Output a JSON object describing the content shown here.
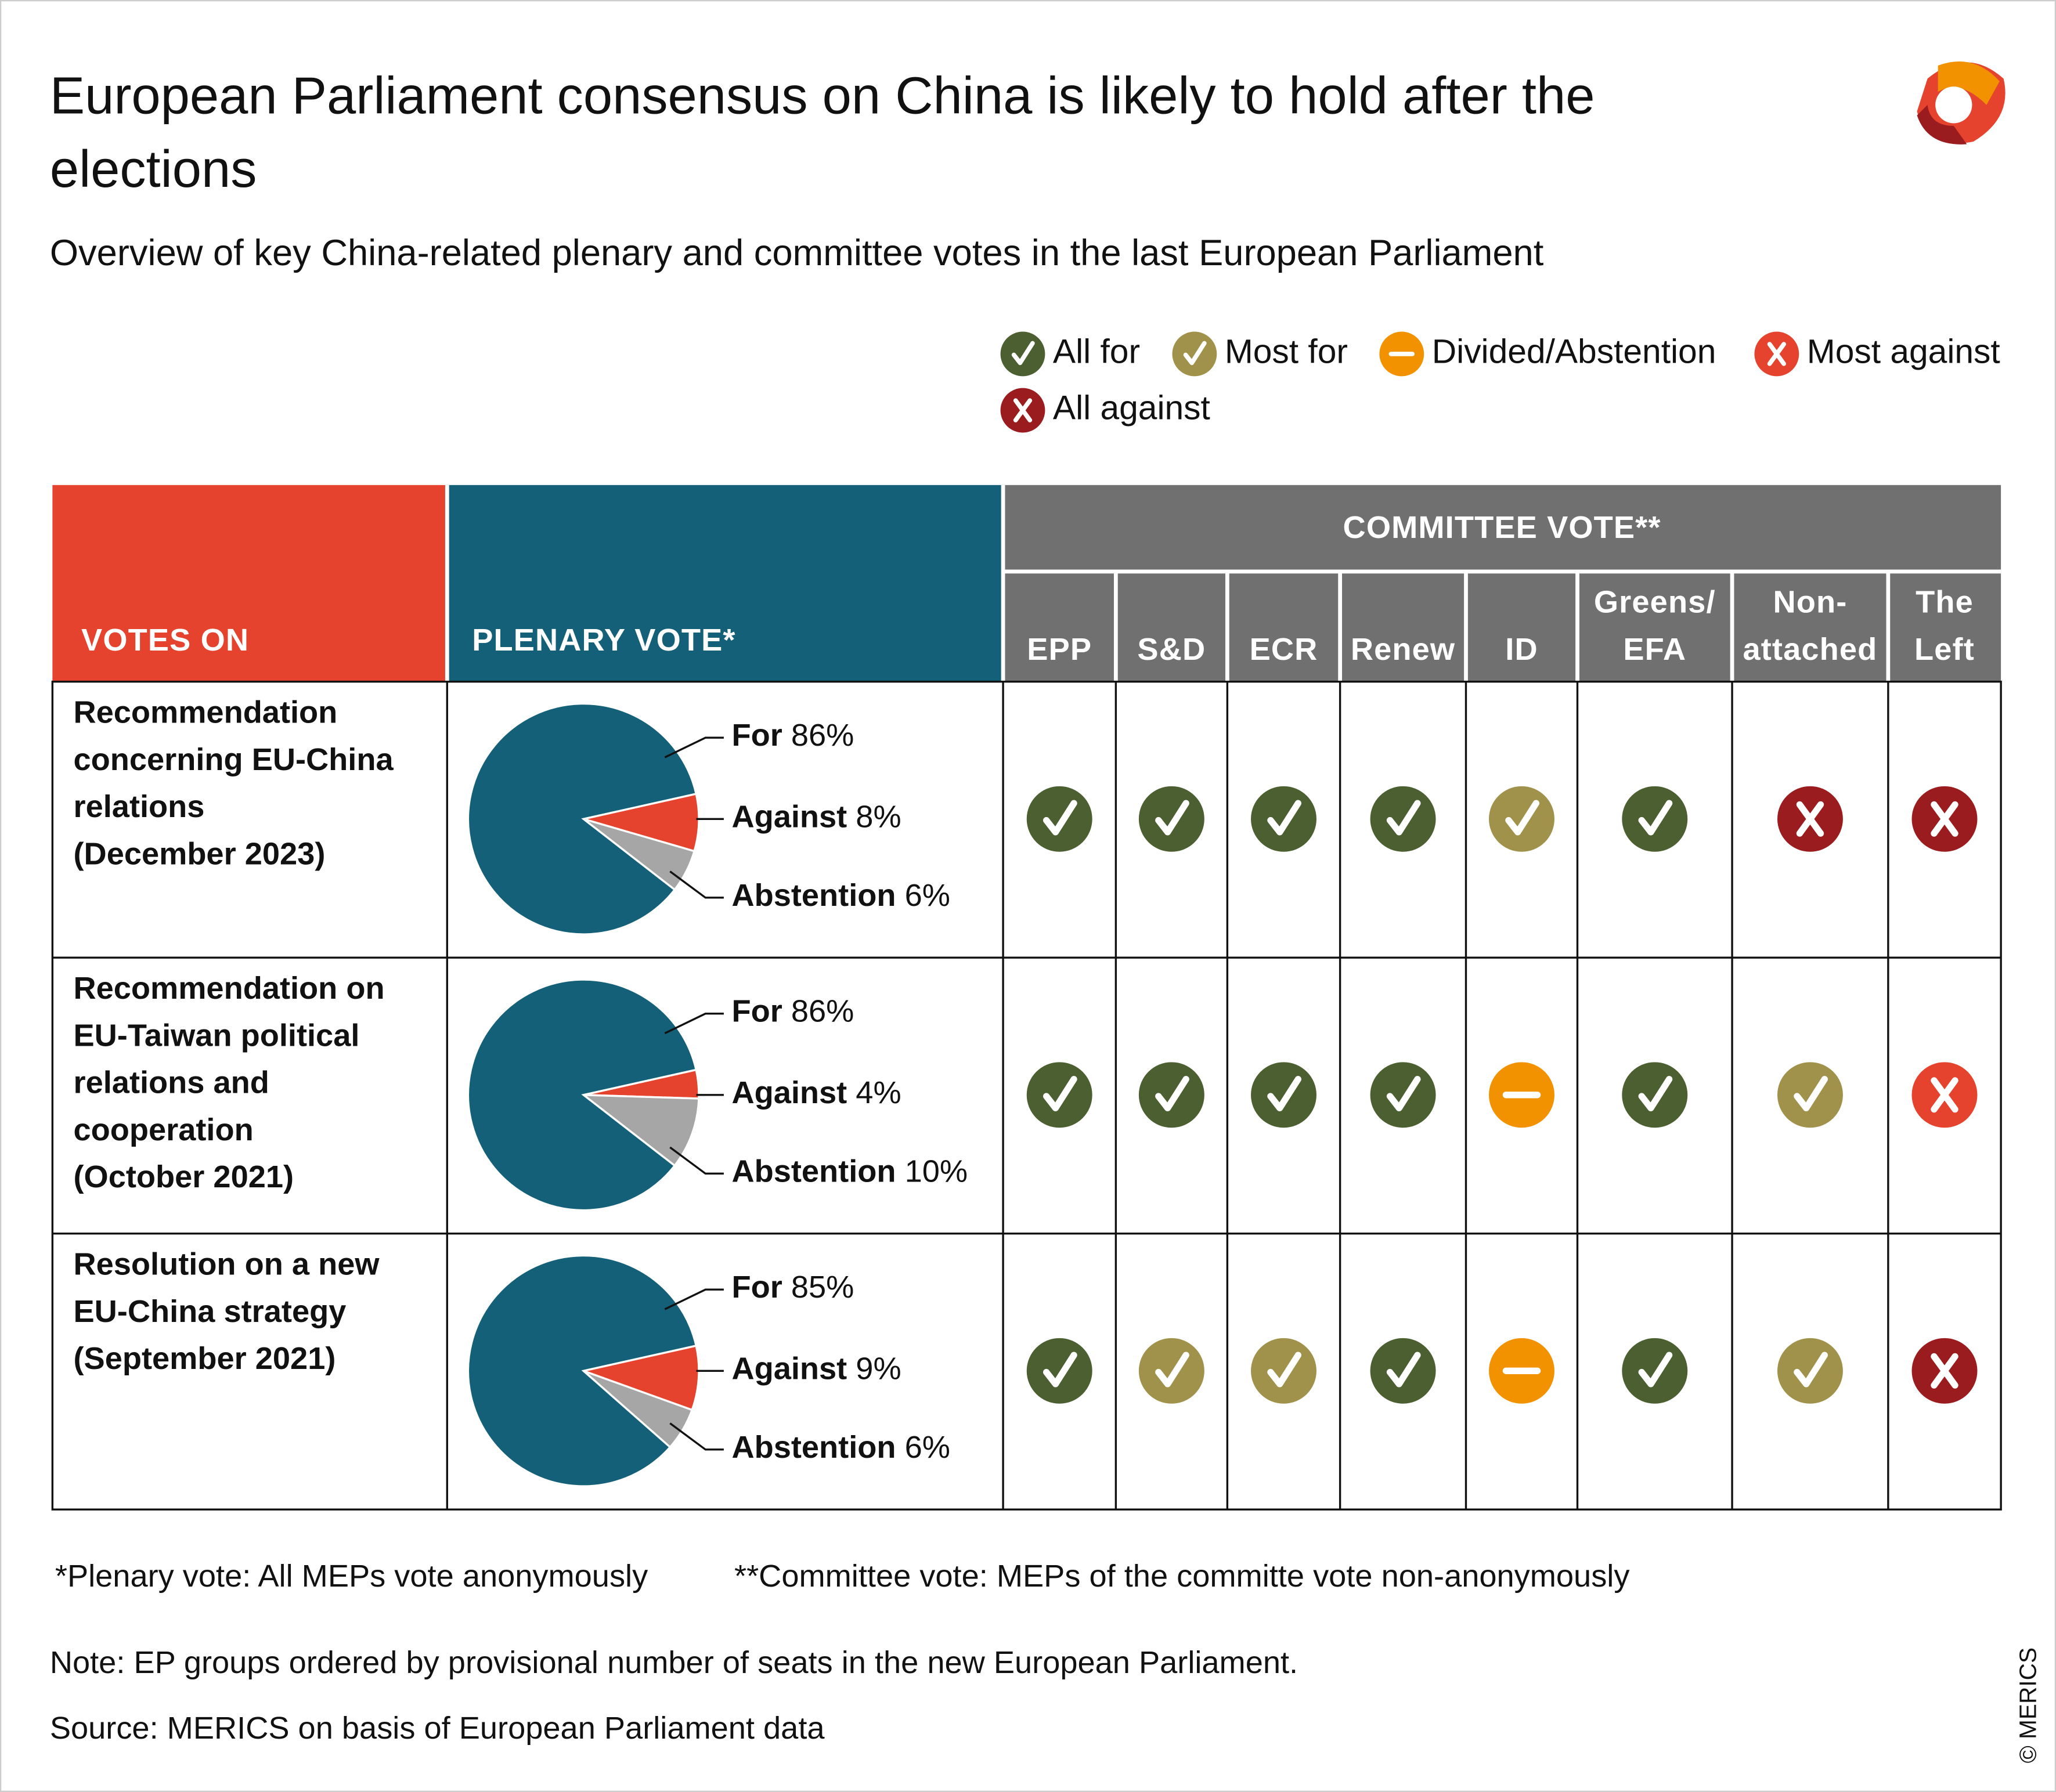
{
  "header": {
    "title_lines": [
      "European Parliament consensus on China is likely to hold after the",
      "elections"
    ],
    "subtitle": "Overview of key China-related plenary and committee votes in the last European Parliament"
  },
  "legend": [
    {
      "label": "All for",
      "color": "#4b5f30",
      "icon": "check"
    },
    {
      "label": "Most for",
      "color": "#a0924a",
      "icon": "check"
    },
    {
      "label": "Divided/Abstention",
      "color": "#f39200",
      "icon": "dash"
    },
    {
      "label": "Most against",
      "color": "#e5432d",
      "icon": "cross"
    },
    {
      "label": "All against",
      "color": "#9b1c1f",
      "icon": "cross"
    }
  ],
  "table": {
    "columns": {
      "votes_on": "VOTES ON",
      "plenary": "PLENARY VOTE*",
      "committee": "COMMITTEE VOTE**",
      "groups": [
        [
          "EPP"
        ],
        [
          "S&D"
        ],
        [
          "ECR"
        ],
        [
          "Renew"
        ],
        [
          "ID"
        ],
        [
          "Greens/",
          "EFA"
        ],
        [
          "Non-",
          "attached"
        ],
        [
          "The",
          "Left"
        ]
      ]
    },
    "header_colors": [
      "#e5432d",
      "#136078",
      "#707070"
    ],
    "slice_colors": [
      "#136078",
      "#e5432d",
      "#a6a6a6"
    ],
    "rows": [
      {
        "title_lines": [
          "Recommendation",
          "concerning EU-China",
          "relations",
          "(December 2023)"
        ],
        "plenary": {
          "names": [
            "For",
            "Against",
            "Abstention"
          ],
          "values": [
            86,
            8,
            6
          ],
          "value_labels": [
            "86%",
            "8%",
            "6%"
          ]
        },
        "committee": [
          0,
          0,
          0,
          0,
          1,
          0,
          4,
          4
        ]
      },
      {
        "title_lines": [
          "Recommendation on",
          "EU-Taiwan political",
          "relations and",
          "cooperation",
          "(October 2021)"
        ],
        "plenary": {
          "names": [
            "For",
            "Against",
            "Abstention"
          ],
          "values": [
            86,
            4,
            10
          ],
          "value_labels": [
            "86%",
            "4%",
            "10%"
          ]
        },
        "committee": [
          0,
          0,
          0,
          0,
          2,
          0,
          1,
          3
        ]
      },
      {
        "title_lines": [
          "Resolution on a new",
          "EU-China strategy",
          "(September 2021)"
        ],
        "plenary": {
          "names": [
            "For",
            "Against",
            "Abstention"
          ],
          "values": [
            85,
            9,
            6
          ],
          "value_labels": [
            "85%",
            "9%",
            "6%"
          ]
        },
        "committee": [
          0,
          1,
          1,
          0,
          2,
          0,
          1,
          4
        ]
      }
    ]
  },
  "footnotes": [
    "*Plenary vote: All MEPs vote anonymously",
    "**Committee vote: MEPs of the committe vote non-anonymously"
  ],
  "note": "Note: EP groups ordered by provisional number of seats in the new European Parliament.",
  "source": "Source: MERICS on basis of European Parliament data",
  "copyright": "© MERICS"
}
